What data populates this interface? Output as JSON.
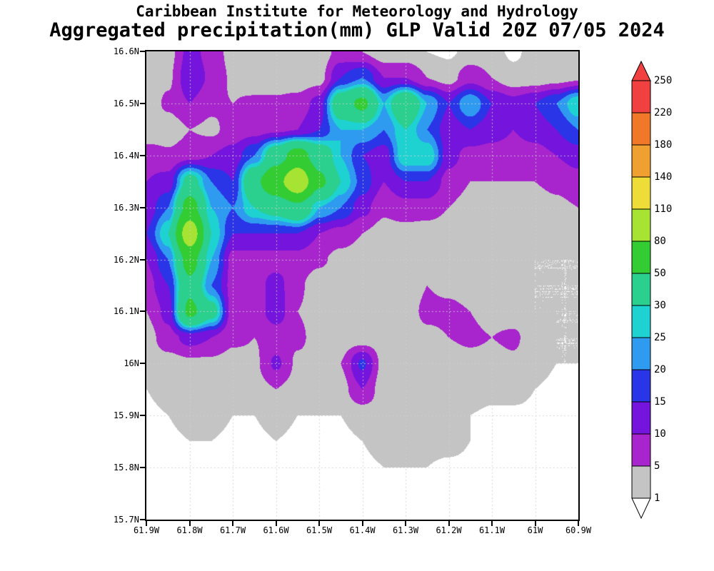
{
  "header": {
    "line1": "Caribbean Institute for Meteorology and Hydrology",
    "line2": "Aggregated precipitation(mm) GLP Valid 20Z 07/05 2024"
  },
  "chart_data": {
    "type": "heatmap",
    "title": "Caribbean Institute for Meteorology and Hydrology",
    "subtitle": "Aggregated precipitation(mm) GLP Valid 20Z 07/05 2024",
    "units": "mm",
    "x_axis": {
      "ticks": [
        "61.9W",
        "61.8W",
        "61.7W",
        "61.6W",
        "61.5W",
        "61.4W",
        "61.3W",
        "61.2W",
        "61.1W",
        "61W",
        "60.9W"
      ],
      "west_deg_w": 61.9,
      "east_deg_w": 60.9
    },
    "y_axis": {
      "ticks": [
        "16.6N",
        "16.5N",
        "16.4N",
        "16.3N",
        "16.2N",
        "16.1N",
        "16N",
        "15.9N",
        "15.8N",
        "15.7N"
      ],
      "north_deg_n": 16.6,
      "south_deg_n": 15.7
    },
    "levels": [
      1,
      5,
      10,
      15,
      20,
      25,
      30,
      50,
      80,
      110,
      140,
      180,
      220,
      250
    ],
    "colorbar_labels": [
      "250",
      "220",
      "180",
      "140",
      "110",
      "80",
      "50",
      "30",
      "25",
      "20",
      "15",
      "10",
      "5",
      "1"
    ],
    "palette": {
      "below_color": "#ffffff",
      "band_colors": [
        "#c4c4c4",
        "#a825cd",
        "#7414dc",
        "#2b35e8",
        "#2f9bf0",
        "#1ed2d2",
        "#2bcf8e",
        "#33cc33",
        "#a6e332",
        "#eedc38",
        "#f0a030",
        "#f07828",
        "#f04040"
      ],
      "above_color": "#f04040",
      "gridline_color": "#d0d0d0"
    },
    "grid": {
      "rows": 19,
      "cols": 21,
      "order": "rows north-to-south (16.6N..15.7N step 0.05), cols west-to-east (61.9W..60.9W step 0.05)",
      "values_mm": [
        [
          2,
          3,
          12,
          8,
          3,
          2,
          2,
          2,
          2,
          7,
          5,
          2,
          2,
          1,
          0.5,
          2,
          2,
          0.5,
          2,
          2,
          2
        ],
        [
          2,
          4,
          14,
          9,
          4,
          2,
          2,
          2,
          3,
          15,
          20,
          10,
          10,
          5,
          3,
          8,
          5,
          2,
          2,
          3,
          4
        ],
        [
          2,
          6,
          10,
          6,
          5,
          6,
          6,
          7,
          12,
          40,
          55,
          25,
          45,
          25,
          15,
          25,
          15,
          12,
          15,
          20,
          30
        ],
        [
          1,
          2,
          5,
          4,
          7,
          8,
          9,
          10,
          15,
          25,
          25,
          20,
          30,
          20,
          12,
          15,
          12,
          10,
          12,
          15,
          20
        ],
        [
          8,
          6,
          8,
          10,
          12,
          20,
          40,
          60,
          40,
          25,
          15,
          12,
          30,
          30,
          12,
          8,
          8,
          8,
          8,
          10,
          12
        ],
        [
          10,
          12,
          35,
          20,
          15,
          45,
          70,
          105,
          55,
          30,
          18,
          10,
          15,
          15,
          8,
          5,
          5,
          5,
          5,
          6,
          8
        ],
        [
          12,
          20,
          60,
          25,
          20,
          30,
          35,
          45,
          25,
          20,
          12,
          6,
          8,
          8,
          5,
          3,
          4,
          4,
          3,
          4,
          5
        ],
        [
          15,
          30,
          100,
          30,
          15,
          15,
          15,
          15,
          10,
          8,
          5,
          3,
          3,
          2,
          2,
          2,
          3,
          3,
          2,
          2,
          3
        ],
        [
          10,
          20,
          60,
          25,
          8,
          8,
          8,
          8,
          6,
          3,
          2,
          1,
          2,
          2,
          1,
          2,
          2,
          2,
          1,
          1,
          1
        ],
        [
          8,
          15,
          45,
          20,
          8,
          8,
          12,
          6,
          2,
          1,
          2,
          2,
          2,
          5,
          4,
          3,
          2,
          2,
          1,
          1,
          1
        ],
        [
          5,
          12,
          55,
          35,
          7,
          7,
          13,
          5,
          3,
          2,
          2,
          2,
          3,
          6,
          6,
          5,
          3,
          2,
          1,
          1,
          1
        ],
        [
          3,
          8,
          12,
          10,
          6,
          5,
          7,
          6,
          3,
          2,
          2,
          2,
          2,
          4,
          5,
          6,
          5,
          6,
          2,
          1,
          1
        ],
        [
          2,
          3,
          4,
          4,
          3,
          4,
          11,
          4,
          3,
          5,
          16,
          3,
          3,
          2,
          2,
          3,
          3,
          4,
          2,
          1,
          1
        ],
        [
          1,
          2,
          4,
          4,
          3,
          3,
          5,
          3,
          2,
          3,
          10,
          2,
          2,
          1,
          2,
          3,
          2,
          2,
          1,
          0.5,
          0.5
        ],
        [
          0.5,
          1,
          2,
          2,
          1,
          1,
          2,
          1,
          1,
          1,
          2,
          3,
          3,
          3,
          2,
          1,
          0.5,
          0.5,
          0.5,
          0.5,
          0.5
        ],
        [
          0.5,
          0.5,
          1,
          1,
          0.5,
          0.5,
          1,
          0.5,
          0.5,
          0.5,
          1,
          2,
          3,
          2,
          2,
          1,
          0.5,
          0.5,
          0.5,
          0.5,
          0.5
        ],
        [
          0.5,
          0.5,
          0.5,
          0.5,
          0.5,
          0.5,
          0.5,
          0.5,
          0.5,
          0.5,
          0.5,
          1,
          1,
          1,
          0.5,
          0.5,
          0.5,
          0.5,
          0.5,
          0.5,
          0.5
        ],
        [
          0.3,
          0.3,
          0.3,
          0.3,
          0.3,
          0.3,
          0.3,
          0.3,
          0.3,
          0.3,
          0.3,
          0.3,
          0.3,
          0.3,
          0.3,
          0.3,
          0.3,
          0.3,
          0.3,
          0.3,
          0.3
        ],
        [
          0.3,
          0.3,
          0.3,
          0.3,
          0.3,
          0.3,
          0.3,
          0.3,
          0.3,
          0.3,
          0.3,
          0.3,
          0.3,
          0.3,
          0.3,
          0.3,
          0.3,
          0.3,
          0.3,
          0.3,
          0.3
        ]
      ]
    },
    "legend_position": "right",
    "grid_on": true
  }
}
